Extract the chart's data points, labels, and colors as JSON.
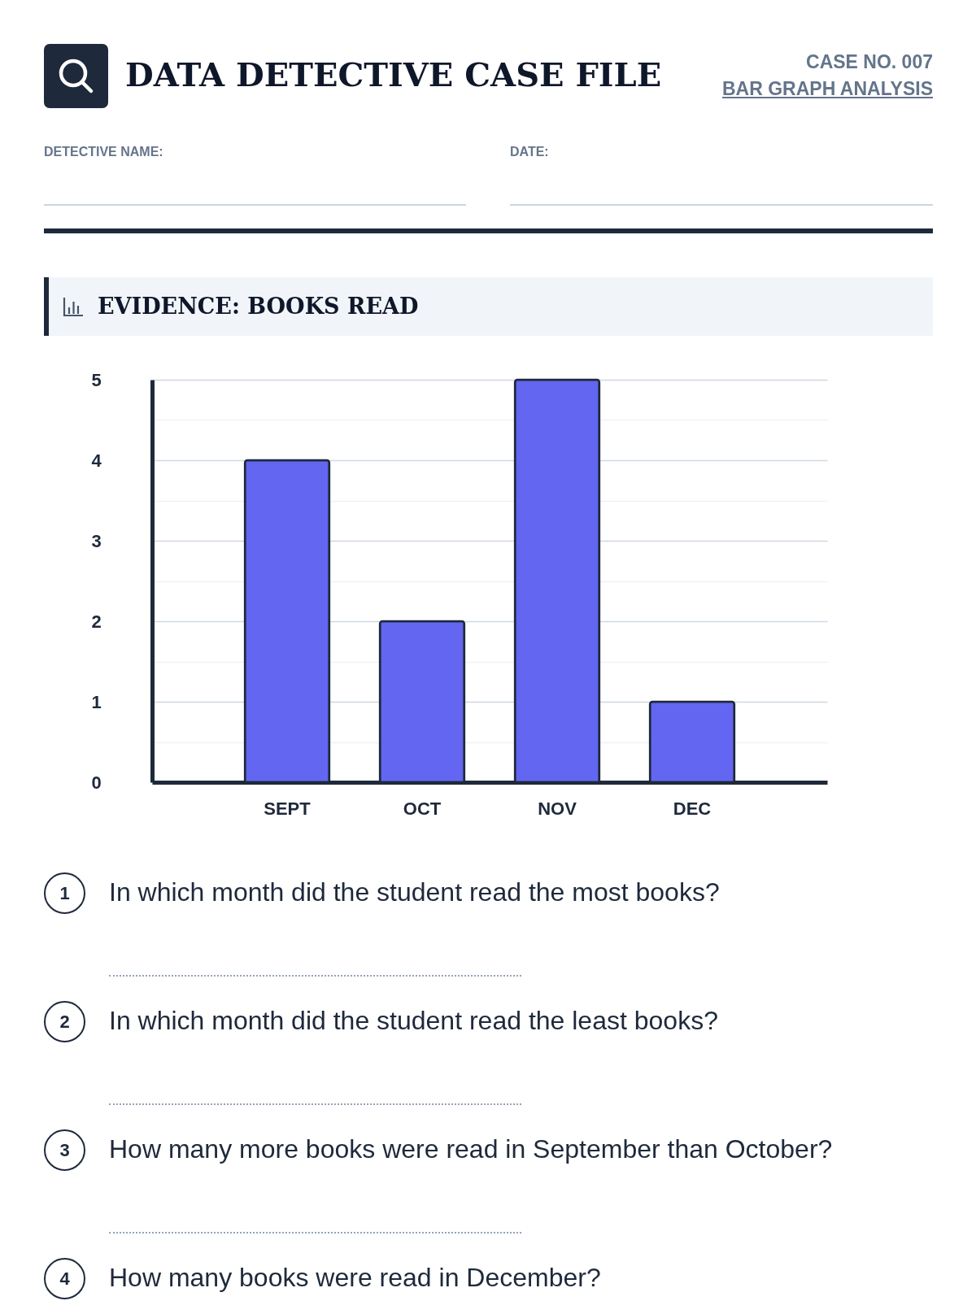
{
  "chart_data": {
    "type": "bar",
    "title": "EVIDENCE: BOOKS READ",
    "categories": [
      "SEPT",
      "OCT",
      "NOV",
      "DEC"
    ],
    "values": [
      4,
      2,
      5,
      1
    ],
    "color": "#6366f1",
    "ylim": [
      0,
      5
    ],
    "yticks": [
      0,
      {
        "value": 0.5,
        "label": null
      },
      1,
      {
        "value": 1.5,
        "label": null
      },
      2,
      {
        "value": 2.5,
        "label": null
      },
      3,
      {
        "value": 3.5,
        "label": null
      },
      4,
      {
        "value": 4.5,
        "label": null
      },
      5
    ],
    "grid": "y",
    "annotations": [
      "DATA DETECTIVE CASE FILE",
      "CASE NO. 007",
      "BAR GRAPH ANALYSIS",
      "DETECTIVE NAME:",
      "DATE:",
      "1",
      "In which month did the student read the most books?",
      "2",
      "In which month did the student read the least books?",
      "3",
      "How many more books were read in September than October?",
      "4",
      "How many books were read in December?"
    ]
  }
}
